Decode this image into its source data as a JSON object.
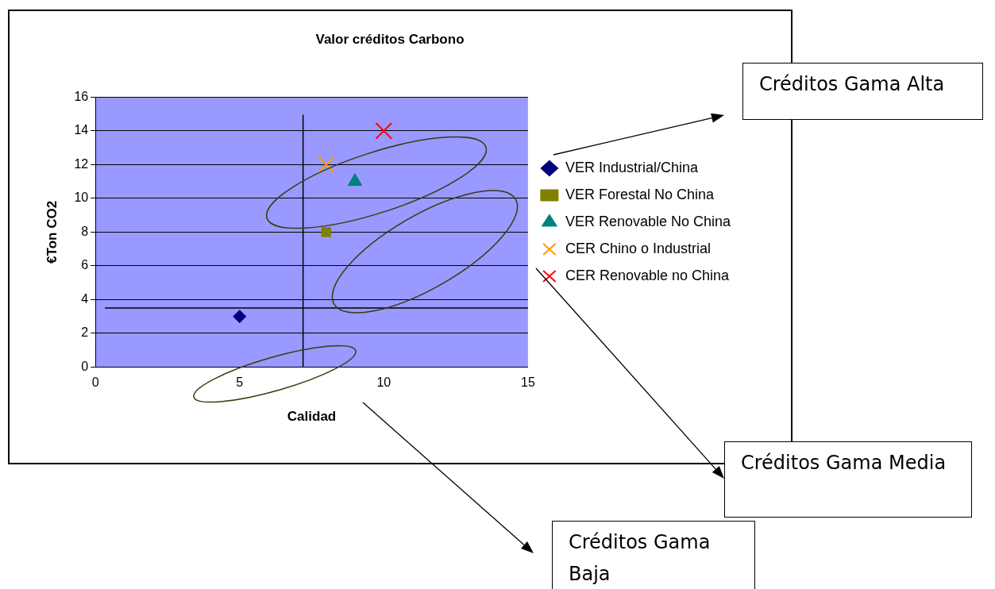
{
  "chart_data": {
    "type": "scatter",
    "title": "Valor créditos Carbono",
    "xlabel": "Calidad",
    "ylabel": "€Ton CO2",
    "xlim": [
      0,
      15
    ],
    "xticks": [
      0,
      5,
      10,
      15
    ],
    "ylim": [
      0,
      16
    ],
    "yticks": [
      0,
      2,
      4,
      6,
      8,
      10,
      12,
      14,
      16
    ],
    "grid": "y",
    "legend": "right",
    "series": [
      {
        "name": "VER Industrial/China",
        "color": "#000080",
        "marker": "diamond",
        "x": [
          5
        ],
        "values": [
          3
        ]
      },
      {
        "name": "VER Forestal No China",
        "color": "#808000",
        "marker": "square",
        "x": [
          8
        ],
        "values": [
          8
        ]
      },
      {
        "name": "VER Renovable No China",
        "color": "#008080",
        "marker": "triangle",
        "x": [
          9
        ],
        "values": [
          11
        ]
      },
      {
        "name": "CER Chino o Industrial",
        "color": "#ff9900",
        "marker": "cross",
        "x": [
          8
        ],
        "values": [
          12
        ]
      },
      {
        "name": "CER Renovable no China",
        "color": "#ff0000",
        "marker": "cross",
        "x": [
          10
        ],
        "values": [
          14
        ]
      }
    ],
    "ref_lines": [
      {
        "axis": "x",
        "value": 7.2,
        "color": "#000000"
      },
      {
        "axis": "y",
        "value": 3.5,
        "color": "#000000"
      }
    ],
    "annotations": [
      "Créditos Gama Alta",
      "Créditos Gama Media",
      "Créditos Gama Baja"
    ]
  }
}
